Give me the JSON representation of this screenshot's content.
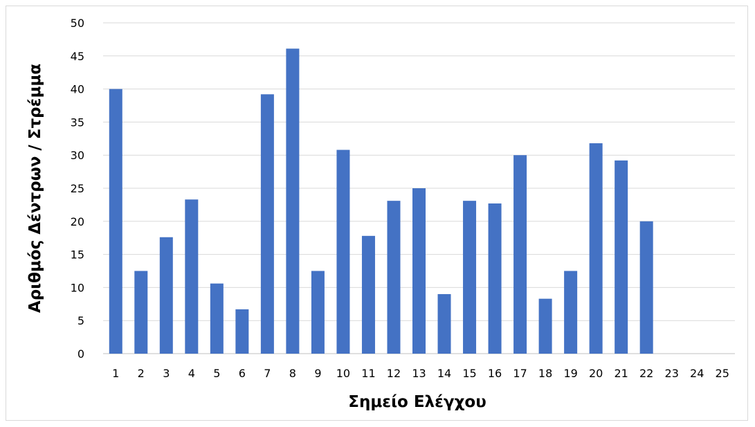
{
  "chart_data": {
    "type": "bar",
    "title": "",
    "xlabel": "Σημείο Ελέγχου",
    "ylabel": "Αριθμός Δέντρων / Στρέμμα",
    "ylim": [
      0,
      50
    ],
    "y_ticks": [
      "0",
      "5",
      "10",
      "15",
      "20",
      "25",
      "30",
      "35",
      "40",
      "45",
      "50"
    ],
    "grid": true,
    "legend": "none",
    "bar_color": "#4472C4",
    "categories": [
      "1",
      "2",
      "3",
      "4",
      "5",
      "6",
      "7",
      "8",
      "9",
      "10",
      "11",
      "12",
      "13",
      "14",
      "15",
      "16",
      "17",
      "18",
      "19",
      "20",
      "21",
      "22",
      "23",
      "24",
      "25"
    ],
    "values": [
      40,
      12.5,
      17.6,
      23.3,
      10.6,
      6.7,
      39.2,
      46.1,
      12.5,
      30.8,
      17.8,
      23.1,
      25.0,
      9.0,
      23.1,
      22.7,
      30.0,
      8.3,
      12.5,
      31.8,
      29.2,
      20.0,
      null,
      null,
      null
    ]
  }
}
